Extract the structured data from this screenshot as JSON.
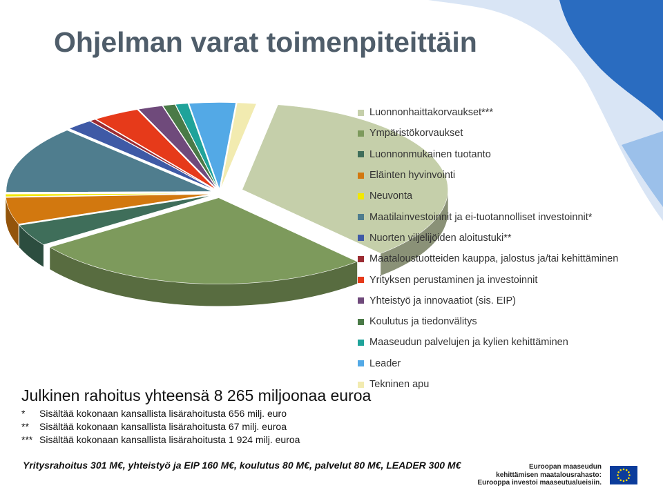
{
  "slide": {
    "title": "Ohjelman varat toimenpiteittäin",
    "total_text": "Julkinen rahoitus yhteensä 8 265 miljoonaa euroa",
    "footnotes": [
      {
        "marker": "*",
        "text": "Sisältää kokonaan kansallista lisärahoitusta 656 milj. euro"
      },
      {
        "marker": "**",
        "text": "Sisältää kokonaan kansallista lisärahoitusta 67 milj. euroa"
      },
      {
        "marker": "***",
        "text": "Sisältää kokonaan kansallista lisärahoitusta 1 924 milj. euroa"
      }
    ],
    "bottom_line": "Yritysrahoitus 301 M€, yhteistyö ja EIP 160 M€, koulutus 80 M€, palvelut 80 M€, LEADER 300 M€",
    "eu_logo": {
      "lines": [
        "Euroopan maaseudun",
        "kehittämisen maatalousrahasto:",
        "Eurooppa investoi maaseutualueisiin."
      ],
      "flag_color": "#0b3c9b",
      "star_color": "#ffdd00"
    }
  },
  "chart_data": {
    "type": "pie",
    "style": "3d-exploded",
    "legend_position": "right",
    "series": [
      {
        "name": "Luonnonhaittakorvaukset***",
        "value": 2932,
        "color": "#c5cfaa"
      },
      {
        "name": "Ympäristökorvaukset",
        "value": 2236,
        "color": "#7d9a5c"
      },
      {
        "name": "Luonnonmukainen tuotanto",
        "value": 335,
        "color": "#3f6e5a"
      },
      {
        "name": "Eläinten hyvinvointi",
        "value": 415,
        "color": "#d2780f"
      },
      {
        "name": "Neuvonta",
        "value": 40,
        "color": "#f2e800"
      },
      {
        "name": "Maatilainvestoinnit ja ei-tuotannolliset investoinnit*",
        "value": 1050,
        "color": "#4f7d8e"
      },
      {
        "name": "Nuorten viljelijöiden aloitustuki**",
        "value": 172,
        "color": "#3f5aa6"
      },
      {
        "name": "Maataloustuotteiden kauppa, jalostus ja/tai kehittäminen",
        "value": 40,
        "color": "#9b2c33"
      },
      {
        "name": "Yrityksen perustaminen ja investoinnit",
        "value": 301,
        "color": "#e63a1a"
      },
      {
        "name": "Yhteistyö ja innovaatiot (sis. EIP)",
        "value": 160,
        "color": "#6f4a7b"
      },
      {
        "name": "Koulutus ja tiedonvälitys",
        "value": 80,
        "color": "#4a7a47"
      },
      {
        "name": "Maaseudun palvelujen ja kylien kehittäminen",
        "value": 80,
        "color": "#1fa39a"
      },
      {
        "name": "Leader",
        "value": 300,
        "color": "#53a9e6"
      },
      {
        "name": "Tekninen apu",
        "value": 124,
        "color": "#f2ebb0"
      }
    ]
  }
}
